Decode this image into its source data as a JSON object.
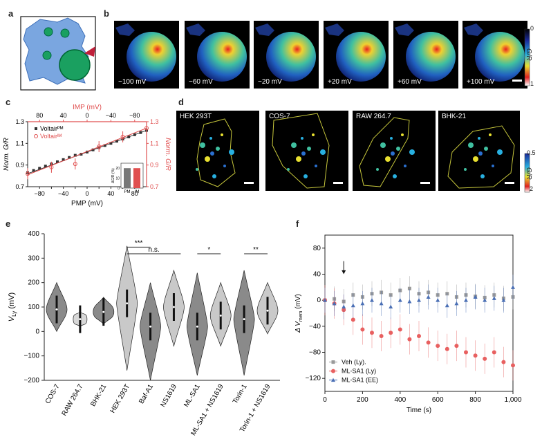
{
  "panels": {
    "a": "a",
    "b": "b",
    "c": "c",
    "d": "d",
    "e": "e",
    "f": "f"
  },
  "panel_b": {
    "frames": [
      "−100 mV",
      "−60 mV",
      "−20 mV",
      "+20 mV",
      "+60 mV",
      "+100 mV"
    ],
    "colorbar_top": "0",
    "colorbar_bottom": "1",
    "colorbar_label": "G/R"
  },
  "panel_d": {
    "cells": [
      "HEK 293T",
      "COS-7",
      "RAW 264.7",
      "BHK-21"
    ],
    "colorbar_top": "0.5",
    "colorbar_bottom": "2",
    "colorbar_label": "G/R"
  },
  "chart_data": [
    {
      "panel": "c",
      "type": "line",
      "xlabel": "PMP (mV)",
      "x2label": "IMP (mV)",
      "ylabel": "Norm. G/R",
      "y2label": "Norm. G/R",
      "xlim": [
        -100,
        100
      ],
      "ylim": [
        0.7,
        1.3
      ],
      "x_ticks": [
        "−80",
        "−40",
        "0",
        "40",
        "80"
      ],
      "x_ticks_all": [
        "−80",
        "−60",
        "−40",
        "−20",
        "0",
        "20",
        "40",
        "60",
        "80"
      ],
      "x2_ticks": [
        "80",
        "40",
        "0",
        "−40",
        "−80"
      ],
      "y_ticks": [
        "0.7",
        "0.9",
        "1.1",
        "1.3"
      ],
      "legend": [
        "Voltairᴾᴹ",
        "Voltairᴵᴹ"
      ],
      "series": [
        {
          "name": "Voltair PM",
          "x": [
            -100,
            -90,
            -80,
            -70,
            -60,
            -50,
            -40,
            -30,
            -20,
            -10,
            0,
            10,
            20,
            30,
            40,
            50,
            60,
            70,
            80,
            90,
            100
          ],
          "values": [
            0.83,
            0.85,
            0.87,
            0.89,
            0.91,
            0.93,
            0.95,
            0.97,
            0.99,
            1.0,
            1.02,
            1.04,
            1.06,
            1.08,
            1.1,
            1.12,
            1.14,
            1.16,
            1.18,
            1.2,
            1.22
          ]
        },
        {
          "name": "Voltair IM",
          "x": [
            -100,
            -60,
            -20,
            20,
            60,
            100
          ],
          "values": [
            0.82,
            0.88,
            0.91,
            1.07,
            1.16,
            1.24
          ]
        }
      ],
      "inset": {
        "ylabel": "ΔG/R (%)",
        "categories": [
          "PM",
          "IM"
        ],
        "values": [
          20,
          20
        ],
        "ylim": [
          0,
          25
        ],
        "y_ticks": [
          "0",
          "10",
          "20"
        ]
      }
    },
    {
      "panel": "e",
      "type": "violin",
      "ylabel": "V",
      "ylabel_sub": "Ly",
      "ylabel_unit": " (mV)",
      "ylim": [
        -200,
        400
      ],
      "y_ticks": [
        "−200",
        "−100",
        "0",
        "100",
        "200",
        "300",
        "400"
      ],
      "categories": [
        "COS-7",
        "RAW 264.7",
        "BHK-21",
        "HEK 293T",
        "Baf-A1",
        "NS1619",
        "ML-SA1",
        "ML-SA1 + NS1619",
        "Torin-1",
        "Torin-1 + NS1619"
      ],
      "medians": [
        90,
        50,
        80,
        115,
        20,
        100,
        20,
        65,
        50,
        85
      ],
      "ranges": [
        [
          0,
          200
        ],
        [
          20,
          80
        ],
        [
          30,
          140
        ],
        [
          -160,
          350
        ],
        [
          -200,
          200
        ],
        [
          -60,
          250
        ],
        [
          -180,
          240
        ],
        [
          -60,
          200
        ],
        [
          -180,
          250
        ],
        [
          -10,
          200
        ]
      ],
      "annotations": [
        {
          "text": "***",
          "from": 3,
          "to": 4
        },
        {
          "text": "n.s.",
          "from": 3,
          "to": 5
        },
        {
          "text": "*",
          "from": 6,
          "to": 7
        },
        {
          "text": "**",
          "from": 8,
          "to": 9
        }
      ]
    },
    {
      "panel": "f",
      "type": "scatter",
      "xlabel": "Time (s)",
      "ylabel": "Δ V",
      "ylabel_sub": "mem",
      "ylabel_unit": " (mV)",
      "xlim": [
        0,
        1000
      ],
      "ylim": [
        -140,
        100
      ],
      "x_ticks": [
        "0",
        "200",
        "400",
        "600",
        "800",
        "1,000"
      ],
      "y_ticks": [
        "−120",
        "−80",
        "−40",
        "0",
        "40",
        "80"
      ],
      "legend": [
        "Veh (Ly).",
        "ML-SA1 (Ly)",
        "ML-SA1 (EE)"
      ],
      "arrow_at": 100,
      "series": [
        {
          "name": "Veh (Ly).",
          "color": "#9a9a9a",
          "shape": "square",
          "x": [
            0,
            50,
            100,
            150,
            200,
            250,
            300,
            350,
            400,
            450,
            500,
            550,
            600,
            650,
            700,
            750,
            800,
            850,
            900,
            950,
            1000
          ],
          "values": [
            0,
            2,
            -2,
            8,
            5,
            10,
            12,
            8,
            15,
            18,
            10,
            12,
            8,
            10,
            5,
            8,
            6,
            4,
            8,
            3,
            5
          ]
        },
        {
          "name": "ML-SA1 (Ly)",
          "color": "#e86060",
          "shape": "circle",
          "x": [
            0,
            50,
            100,
            150,
            200,
            250,
            300,
            350,
            400,
            450,
            500,
            550,
            600,
            650,
            700,
            750,
            800,
            850,
            900,
            950,
            1000
          ],
          "values": [
            0,
            -5,
            -15,
            -30,
            -45,
            -50,
            -55,
            -50,
            -45,
            -60,
            -55,
            -65,
            -70,
            -75,
            -70,
            -80,
            -85,
            -90,
            -80,
            -95,
            -100
          ]
        },
        {
          "name": "ML-SA1 (EE)",
          "color": "#4a6fb5",
          "shape": "triangle",
          "x": [
            0,
            50,
            100,
            150,
            200,
            250,
            300,
            350,
            400,
            450,
            500,
            550,
            600,
            650,
            700,
            750,
            800,
            850,
            900,
            950,
            1000
          ],
          "values": [
            0,
            -5,
            -10,
            -8,
            -5,
            0,
            -5,
            -10,
            0,
            -2,
            0,
            5,
            0,
            -8,
            -5,
            0,
            5,
            0,
            3,
            0,
            20
          ]
        }
      ]
    }
  ],
  "colors": {
    "red": "#e05050",
    "dark": "#222222",
    "violin_dark": "#8a8a8a",
    "violin_light": "#c9c9c9",
    "cell_outline": "#c8c83c",
    "schematic_fill": "#7aa6e0",
    "organelle": "#1aa060"
  }
}
